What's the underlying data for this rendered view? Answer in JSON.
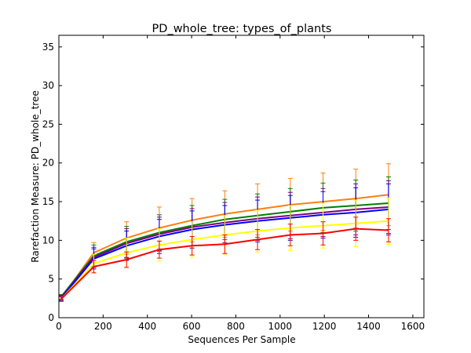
{
  "chart_data": {
    "type": "line",
    "title": "PD_whole_tree: types_of_plants",
    "xlabel": "Sequences Per Sample",
    "ylabel": "Rarefaction Measure: PD_whole_tree",
    "xlim": [
      0,
      1650
    ],
    "ylim": [
      0,
      36.5
    ],
    "xticks": [
      "0",
      "200",
      "400",
      "600",
      "800",
      "1000",
      "1200",
      "1400",
      "1600"
    ],
    "yticks": [
      "0",
      "5",
      "10",
      "15",
      "20",
      "25",
      "30",
      "35"
    ],
    "grid": false,
    "x": [
      10,
      158,
      306,
      454,
      602,
      750,
      898,
      1046,
      1194,
      1342,
      1490
    ],
    "series": [
      {
        "color": "#ff7f0e",
        "values": [
          2.5,
          8.4,
          10.3,
          11.6,
          12.6,
          13.4,
          14.0,
          14.6,
          15.0,
          15.4,
          15.9
        ],
        "errors": [
          0.3,
          1.3,
          2.1,
          2.7,
          2.8,
          3.0,
          3.3,
          3.4,
          3.7,
          3.8,
          4.0
        ]
      },
      {
        "color": "#008000",
        "values": [
          2.7,
          8.0,
          9.8,
          11.0,
          11.9,
          12.7,
          13.2,
          13.7,
          14.2,
          14.5,
          14.8
        ],
        "errors": [
          0.3,
          1.4,
          2.0,
          2.3,
          2.6,
          2.6,
          2.8,
          3.0,
          3.2,
          3.3,
          3.4
        ]
      },
      {
        "color": "#800080",
        "values": [
          2.6,
          7.8,
          9.6,
          10.8,
          11.7,
          12.3,
          12.8,
          13.2,
          13.6,
          14.0,
          14.3
        ],
        "errors": [
          0.3,
          1.3,
          1.9,
          2.2,
          2.4,
          2.6,
          2.8,
          3.0,
          3.1,
          3.3,
          3.4
        ]
      },
      {
        "color": "#0000ff",
        "values": [
          2.5,
          7.6,
          9.3,
          10.5,
          11.4,
          12.0,
          12.5,
          12.9,
          13.3,
          13.6,
          14.0
        ],
        "errors": [
          0.3,
          1.3,
          1.9,
          2.2,
          2.4,
          2.5,
          2.7,
          2.9,
          3.0,
          3.2,
          3.3
        ]
      },
      {
        "color": "#ffff00",
        "values": [
          2.4,
          7.0,
          8.4,
          9.4,
          10.1,
          10.7,
          11.2,
          11.6,
          11.9,
          12.2,
          12.5
        ],
        "errors": [
          0.3,
          1.2,
          1.9,
          2.1,
          2.3,
          2.5,
          2.7,
          2.9,
          2.9,
          3.0,
          3.0
        ]
      },
      {
        "color": "#ff0000",
        "values": [
          2.4,
          6.6,
          7.5,
          8.8,
          9.3,
          9.5,
          10.1,
          10.7,
          10.9,
          11.5,
          11.3
        ],
        "errors": [
          0.3,
          0.8,
          1.0,
          1.1,
          1.2,
          1.2,
          1.3,
          1.4,
          1.5,
          1.5,
          1.5
        ]
      }
    ]
  }
}
